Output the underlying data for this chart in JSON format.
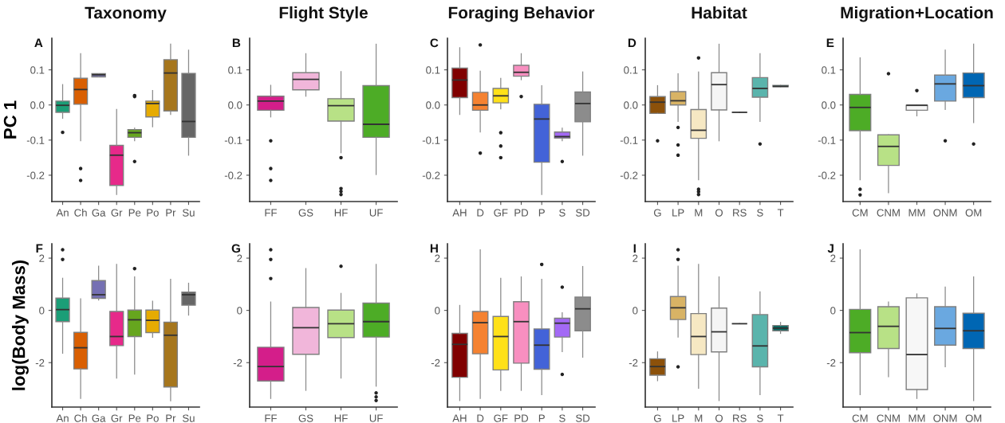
{
  "chart_data": [
    {
      "type": "box",
      "title": "Taxonomy",
      "subtitle": "A",
      "ylabel": "PC 1",
      "categories": [
        "An",
        "Ch",
        "Ga",
        "Gr",
        "Pe",
        "Po",
        "Pr",
        "Su"
      ],
      "colors": [
        "#1b9e77",
        "#d95f02",
        "#7570b3",
        "#e7298a",
        "#66a61e",
        "#e6ab02",
        "#a6761d",
        "#666666"
      ],
      "boxes": [
        {
          "low": -0.038,
          "q1": -0.021,
          "median": -0.001,
          "q3": 0.011,
          "high": 0.058,
          "outliers": [
            -0.078
          ]
        },
        {
          "low": -0.102,
          "q1": 0.002,
          "median": 0.044,
          "q3": 0.076,
          "high": 0.146,
          "outliers": [
            -0.181,
            -0.215
          ]
        },
        {
          "low": 0.08,
          "q1": 0.08,
          "median": 0.086,
          "q3": 0.089,
          "high": 0.089
        },
        {
          "low": -0.255,
          "q1": -0.229,
          "median": -0.143,
          "q3": -0.115,
          "high": -0.013
        },
        {
          "low": -0.102,
          "q1": -0.092,
          "median": -0.079,
          "q3": -0.07,
          "high": -0.066,
          "outliers": [
            0.027,
            0.024,
            -0.161
          ]
        },
        {
          "low": -0.062,
          "q1": -0.034,
          "median": 0.004,
          "q3": 0.011,
          "high": 0.041
        },
        {
          "low": -0.027,
          "q1": -0.017,
          "median": 0.091,
          "q3": 0.129,
          "high": 0.173
        },
        {
          "low": -0.143,
          "q1": -0.092,
          "median": -0.047,
          "q3": 0.09,
          "high": 0.156
        }
      ],
      "ylim": [
        -0.275,
        0.19
      ],
      "yticks": [
        {
          "value": -0.2,
          "label": "-0.2"
        },
        {
          "value": -0.1,
          "label": "-0.1"
        },
        {
          "value": 0,
          "label": "0.0"
        },
        {
          "value": 0.1,
          "label": "0.1"
        }
      ]
    },
    {
      "type": "box",
      "title": "Flight Style",
      "subtitle": "B",
      "categories": [
        "FF",
        "GS",
        "HF",
        "UF"
      ],
      "colors": [
        "#d41e8a",
        "#f1b6da",
        "#b8e186",
        "#4dac26"
      ],
      "boxes": [
        {
          "low": -0.034,
          "q1": -0.015,
          "median": 0.011,
          "q3": 0.025,
          "high": 0.056,
          "outliers": [
            -0.102,
            -0.181,
            -0.215
          ]
        },
        {
          "low": 0.025,
          "q1": 0.043,
          "median": 0.073,
          "q3": 0.092,
          "high": 0.146
        },
        {
          "low": -0.136,
          "q1": -0.046,
          "median": -0.002,
          "q3": 0.018,
          "high": 0.095,
          "outliers": [
            -0.15,
            -0.238,
            -0.246,
            -0.255
          ]
        },
        {
          "low": -0.198,
          "q1": -0.092,
          "median": -0.055,
          "q3": 0.055,
          "high": 0.173
        }
      ],
      "ylim": [
        -0.275,
        0.19
      ],
      "yticks": [
        {
          "value": -0.2,
          "label": "-0.2"
        },
        {
          "value": -0.1,
          "label": "-0.1"
        },
        {
          "value": 0,
          "label": "0.0"
        },
        {
          "value": 0.1,
          "label": "0.1"
        }
      ]
    },
    {
      "type": "box",
      "title": "Foraging Behavior",
      "subtitle": "C",
      "categories": [
        "AH",
        "D",
        "GF",
        "PD",
        "P",
        "S",
        "SD"
      ],
      "colors": [
        "#800000",
        "#f58231",
        "#ffe119",
        "#f88fc0",
        "#4363d8",
        "#a369f5",
        "#8c8c8c"
      ],
      "boxes": [
        {
          "low": -0.027,
          "q1": 0.021,
          "median": 0.071,
          "q3": 0.105,
          "high": 0.163
        },
        {
          "low": -0.077,
          "q1": -0.015,
          "median": 0.0,
          "q3": 0.036,
          "high": 0.096,
          "outliers": [
            0.171,
            -0.137
          ]
        },
        {
          "low": -0.011,
          "q1": 0.006,
          "median": 0.026,
          "q3": 0.047,
          "high": 0.076,
          "outliers": [
            -0.079,
            -0.117,
            -0.15
          ]
        },
        {
          "low": 0.072,
          "q1": 0.082,
          "median": 0.093,
          "q3": 0.113,
          "high": 0.146,
          "outliers": [
            0.024
          ]
        },
        {
          "low": -0.255,
          "q1": -0.163,
          "median": -0.04,
          "q3": 0.002,
          "high": 0.055
        },
        {
          "low": -0.102,
          "q1": -0.094,
          "median": -0.09,
          "q3": -0.077,
          "high": -0.066,
          "outliers": [
            -0.161
          ]
        },
        {
          "low": -0.143,
          "q1": -0.048,
          "median": 0.004,
          "q3": 0.037,
          "high": 0.094
        }
      ],
      "ylim": [
        -0.275,
        0.19
      ],
      "yticks": [
        {
          "value": -0.2,
          "label": "-0.2"
        },
        {
          "value": -0.1,
          "label": "-0.1"
        },
        {
          "value": 0,
          "label": "0.0"
        },
        {
          "value": 0.1,
          "label": "0.1"
        }
      ]
    },
    {
      "type": "box",
      "title": "Habitat",
      "subtitle": "D",
      "categories": [
        "G",
        "LP",
        "M",
        "O",
        "RS",
        "S",
        "T"
      ],
      "colors": [
        "#8c510a",
        "#d8b365",
        "#f6e8c3",
        "#f5f5f5",
        null,
        "#5ab4ac",
        "#01665e"
      ],
      "boxes": [
        {
          "low": -0.024,
          "q1": -0.024,
          "median": 0.008,
          "q3": 0.024,
          "high": 0.055,
          "outliers": [
            -0.102
          ]
        },
        {
          "low": -0.047,
          "q1": 0.0,
          "median": 0.012,
          "q3": 0.038,
          "high": 0.089,
          "outliers": [
            -0.064,
            -0.114,
            -0.143
          ]
        },
        {
          "low": -0.213,
          "q1": -0.095,
          "median": -0.072,
          "q3": -0.013,
          "high": 0.094,
          "outliers": [
            0.134,
            -0.24,
            -0.247,
            -0.255
          ]
        },
        {
          "low": -0.102,
          "q1": -0.014,
          "median": 0.058,
          "q3": 0.092,
          "high": 0.173
        },
        {
          "low": -0.021,
          "q1": -0.021,
          "median": -0.021,
          "q3": -0.021,
          "high": -0.021
        },
        {
          "low": -0.047,
          "q1": 0.022,
          "median": 0.047,
          "q3": 0.078,
          "high": 0.146,
          "outliers": [
            -0.111
          ]
        },
        {
          "low": 0.052,
          "q1": 0.052,
          "median": 0.053,
          "q3": 0.056,
          "high": 0.056
        }
      ],
      "ylim": [
        -0.275,
        0.19
      ],
      "yticks": [
        {
          "value": -0.2,
          "label": "-0.2"
        },
        {
          "value": -0.1,
          "label": "-0.1"
        },
        {
          "value": 0,
          "label": "0.0"
        },
        {
          "value": 0.1,
          "label": "0.1"
        }
      ]
    },
    {
      "type": "box",
      "title": "Migration+Location",
      "subtitle": "E",
      "categories": [
        "CM",
        "CNM",
        "MM",
        "ONM",
        "OM"
      ],
      "colors": [
        "#4dac26",
        "#b8e186",
        "#f7f7f7",
        "#6aa8e0",
        "#0066b3"
      ],
      "boxes": [
        {
          "low": -0.213,
          "q1": -0.073,
          "median": -0.007,
          "q3": 0.03,
          "high": 0.134,
          "outliers": [
            -0.24,
            -0.256
          ]
        },
        {
          "low": -0.25,
          "q1": -0.172,
          "median": -0.118,
          "q3": -0.085,
          "high": -0.085,
          "outliers": [
            0.089
          ]
        },
        {
          "low": -0.031,
          "q1": -0.015,
          "median": -0.001,
          "q3": -0.001,
          "high": -0.001,
          "outliers": [
            0.041
          ]
        },
        {
          "low": -0.013,
          "q1": 0.011,
          "median": 0.06,
          "q3": 0.085,
          "high": 0.156,
          "outliers": [
            -0.102
          ]
        },
        {
          "low": -0.05,
          "q1": 0.021,
          "median": 0.055,
          "q3": 0.091,
          "high": 0.173,
          "outliers": [
            -0.111
          ]
        }
      ],
      "ylim": [
        -0.275,
        0.19
      ],
      "yticks": [
        {
          "value": -0.2,
          "label": "-0.2"
        },
        {
          "value": -0.1,
          "label": "-0.1"
        },
        {
          "value": 0,
          "label": "0.0"
        },
        {
          "value": 0.1,
          "label": "0.1"
        }
      ]
    },
    {
      "type": "box",
      "subtitle": "F",
      "ylabel": "log(Body Mass)",
      "categories": [
        "An",
        "Ch",
        "Ga",
        "Gr",
        "Pe",
        "Po",
        "Pr",
        "Su"
      ],
      "colors": [
        "#1b9e77",
        "#d95f02",
        "#7570b3",
        "#e7298a",
        "#66a61e",
        "#e6ab02",
        "#a6761d",
        "#666666"
      ],
      "boxes": [
        {
          "low": -1.64,
          "q1": -0.43,
          "median": 0.03,
          "q3": 0.47,
          "high": 1.23,
          "outliers": [
            2.32,
            1.95
          ]
        },
        {
          "low": -3.37,
          "q1": -2.24,
          "median": -1.43,
          "q3": -0.84,
          "high": 0.44
        },
        {
          "low": 0.4,
          "q1": 0.46,
          "median": 0.6,
          "q3": 1.14,
          "high": 1.69
        },
        {
          "low": -2.59,
          "q1": -1.35,
          "median": -1.0,
          "q3": -0.04,
          "high": 1.76
        },
        {
          "low": -2.44,
          "q1": -1.0,
          "median": -0.36,
          "q3": 0.01,
          "high": 1.28,
          "outliers": [
            1.6
          ]
        },
        {
          "low": -1.03,
          "q1": -0.85,
          "median": -0.38,
          "q3": 0.01,
          "high": 0.35
        },
        {
          "low": -3.46,
          "q1": -2.93,
          "median": -0.95,
          "q3": -0.45,
          "high": 1.19
        },
        {
          "low": -0.18,
          "q1": 0.2,
          "median": 0.6,
          "q3": 0.7,
          "high": 1.04
        }
      ],
      "ylim": [
        -3.7,
        2.55
      ],
      "yticks": [
        {
          "value": -2,
          "label": "-2"
        },
        0,
        2
      ]
    },
    {
      "type": "box",
      "subtitle": "G",
      "categories": [
        "FF",
        "GS",
        "HF",
        "UF"
      ],
      "colors": [
        "#d41e8a",
        "#f1b6da",
        "#b8e186",
        "#4dac26"
      ],
      "boxes": [
        {
          "low": -3.37,
          "q1": -2.7,
          "median": -2.15,
          "q3": -1.41,
          "high": 0.32,
          "outliers": [
            2.32,
            1.95,
            1.22
          ]
        },
        {
          "low": -3.06,
          "q1": -1.68,
          "median": -0.66,
          "q3": 0.11,
          "high": 1.6
        },
        {
          "low": -2.59,
          "q1": -1.04,
          "median": -0.51,
          "q3": 0.01,
          "high": 0.65,
          "outliers": [
            1.69
          ]
        },
        {
          "low": -2.9,
          "q1": -1.02,
          "median": -0.43,
          "q3": 0.28,
          "high": 1.76,
          "outliers": [
            -3.16,
            -3.31,
            -3.45
          ]
        }
      ],
      "ylim": [
        -3.7,
        2.55
      ],
      "yticks": [
        {
          "value": -2,
          "label": "-2"
        },
        0,
        2
      ]
    },
    {
      "type": "box",
      "subtitle": "H",
      "categories": [
        "AH",
        "D",
        "GF",
        "PD",
        "P",
        "S",
        "SD"
      ],
      "colors": [
        "#800000",
        "#f58231",
        "#ffe119",
        "#f88fc0",
        "#4363d8",
        "#a369f5",
        "#8c8c8c"
      ],
      "boxes": [
        {
          "low": -3.45,
          "q1": -2.56,
          "median": -1.3,
          "q3": -0.88,
          "high": 0.19
        },
        {
          "low": -3.37,
          "q1": -1.66,
          "median": -0.47,
          "q3": -0.04,
          "high": 2.32
        },
        {
          "low": -3.06,
          "q1": -2.28,
          "median": -1.0,
          "q3": -0.23,
          "high": 1.23
        },
        {
          "low": -3.06,
          "q1": -2.02,
          "median": -0.43,
          "q3": 0.33,
          "high": 1.28
        },
        {
          "low": -3.22,
          "q1": -2.25,
          "median": -1.33,
          "q3": -0.71,
          "high": 1.19,
          "outliers": [
            1.76
          ]
        },
        {
          "low": -1.58,
          "q1": -1.02,
          "median": -0.49,
          "q3": -0.3,
          "high": -0.09,
          "outliers": [
            0.89,
            -2.45
          ]
        },
        {
          "low": -1.79,
          "q1": -0.78,
          "median": 0.06,
          "q3": 0.51,
          "high": 1.68
        }
      ],
      "ylim": [
        -3.7,
        2.55
      ],
      "yticks": [
        {
          "value": -2,
          "label": "-2"
        },
        0,
        2
      ]
    },
    {
      "type": "box",
      "subtitle": "I",
      "categories": [
        "G",
        "LP",
        "M",
        "O",
        "RS",
        "S",
        "T"
      ],
      "colors": [
        "#8c510a",
        "#d8b365",
        "#f6e8c3",
        "#f5f5f5",
        null,
        "#5ab4ac",
        "#01665e"
      ],
      "boxes": [
        {
          "low": -2.69,
          "q1": -2.48,
          "median": -2.15,
          "q3": -1.85,
          "high": -1.59
        },
        {
          "low": -1.02,
          "q1": -0.35,
          "median": 0.1,
          "q3": 0.53,
          "high": 1.69,
          "outliers": [
            2.32,
            1.95,
            -2.16
          ]
        },
        {
          "low": -2.98,
          "q1": -1.69,
          "median": -1.0,
          "q3": -0.12,
          "high": 1.76
        },
        {
          "low": -3.45,
          "q1": -1.59,
          "median": -0.82,
          "q3": 0.09,
          "high": 1.28
        },
        {
          "low": -0.51,
          "q1": -0.51,
          "median": -0.51,
          "q3": -0.51,
          "high": -0.51
        },
        {
          "low": -3.22,
          "q1": -2.16,
          "median": -1.36,
          "q3": -0.16,
          "high": 0.71
        },
        {
          "low": -0.88,
          "q1": -0.78,
          "median": -0.68,
          "q3": -0.58,
          "high": -0.46
        }
      ],
      "ylim": [
        -3.7,
        2.55
      ],
      "yticks": [
        {
          "value": -2,
          "label": "-2"
        },
        0,
        2
      ]
    },
    {
      "type": "box",
      "subtitle": "J",
      "categories": [
        "CM",
        "CNM",
        "MM",
        "ONM",
        "OM"
      ],
      "colors": [
        "#4dac26",
        "#b8e186",
        "#f7f7f7",
        "#6aa8e0",
        "#0066b3"
      ],
      "boxes": [
        {
          "low": -3.22,
          "q1": -1.62,
          "median": -0.85,
          "q3": 0.04,
          "high": 2.32
        },
        {
          "low": -2.54,
          "q1": -1.46,
          "median": -0.61,
          "q3": 0.14,
          "high": 0.32
        },
        {
          "low": -3.37,
          "q1": -3.03,
          "median": -1.69,
          "q3": 0.48,
          "high": 0.63
        },
        {
          "low": -2.16,
          "q1": -1.33,
          "median": -0.69,
          "q3": 0.14,
          "high": 0.89
        },
        {
          "low": -3.45,
          "q1": -1.46,
          "median": -0.78,
          "q3": -0.11,
          "high": 1.28
        }
      ],
      "ylim": [
        -3.7,
        2.55
      ],
      "yticks": [
        {
          "value": -2,
          "label": "-2"
        },
        0,
        2
      ]
    }
  ]
}
